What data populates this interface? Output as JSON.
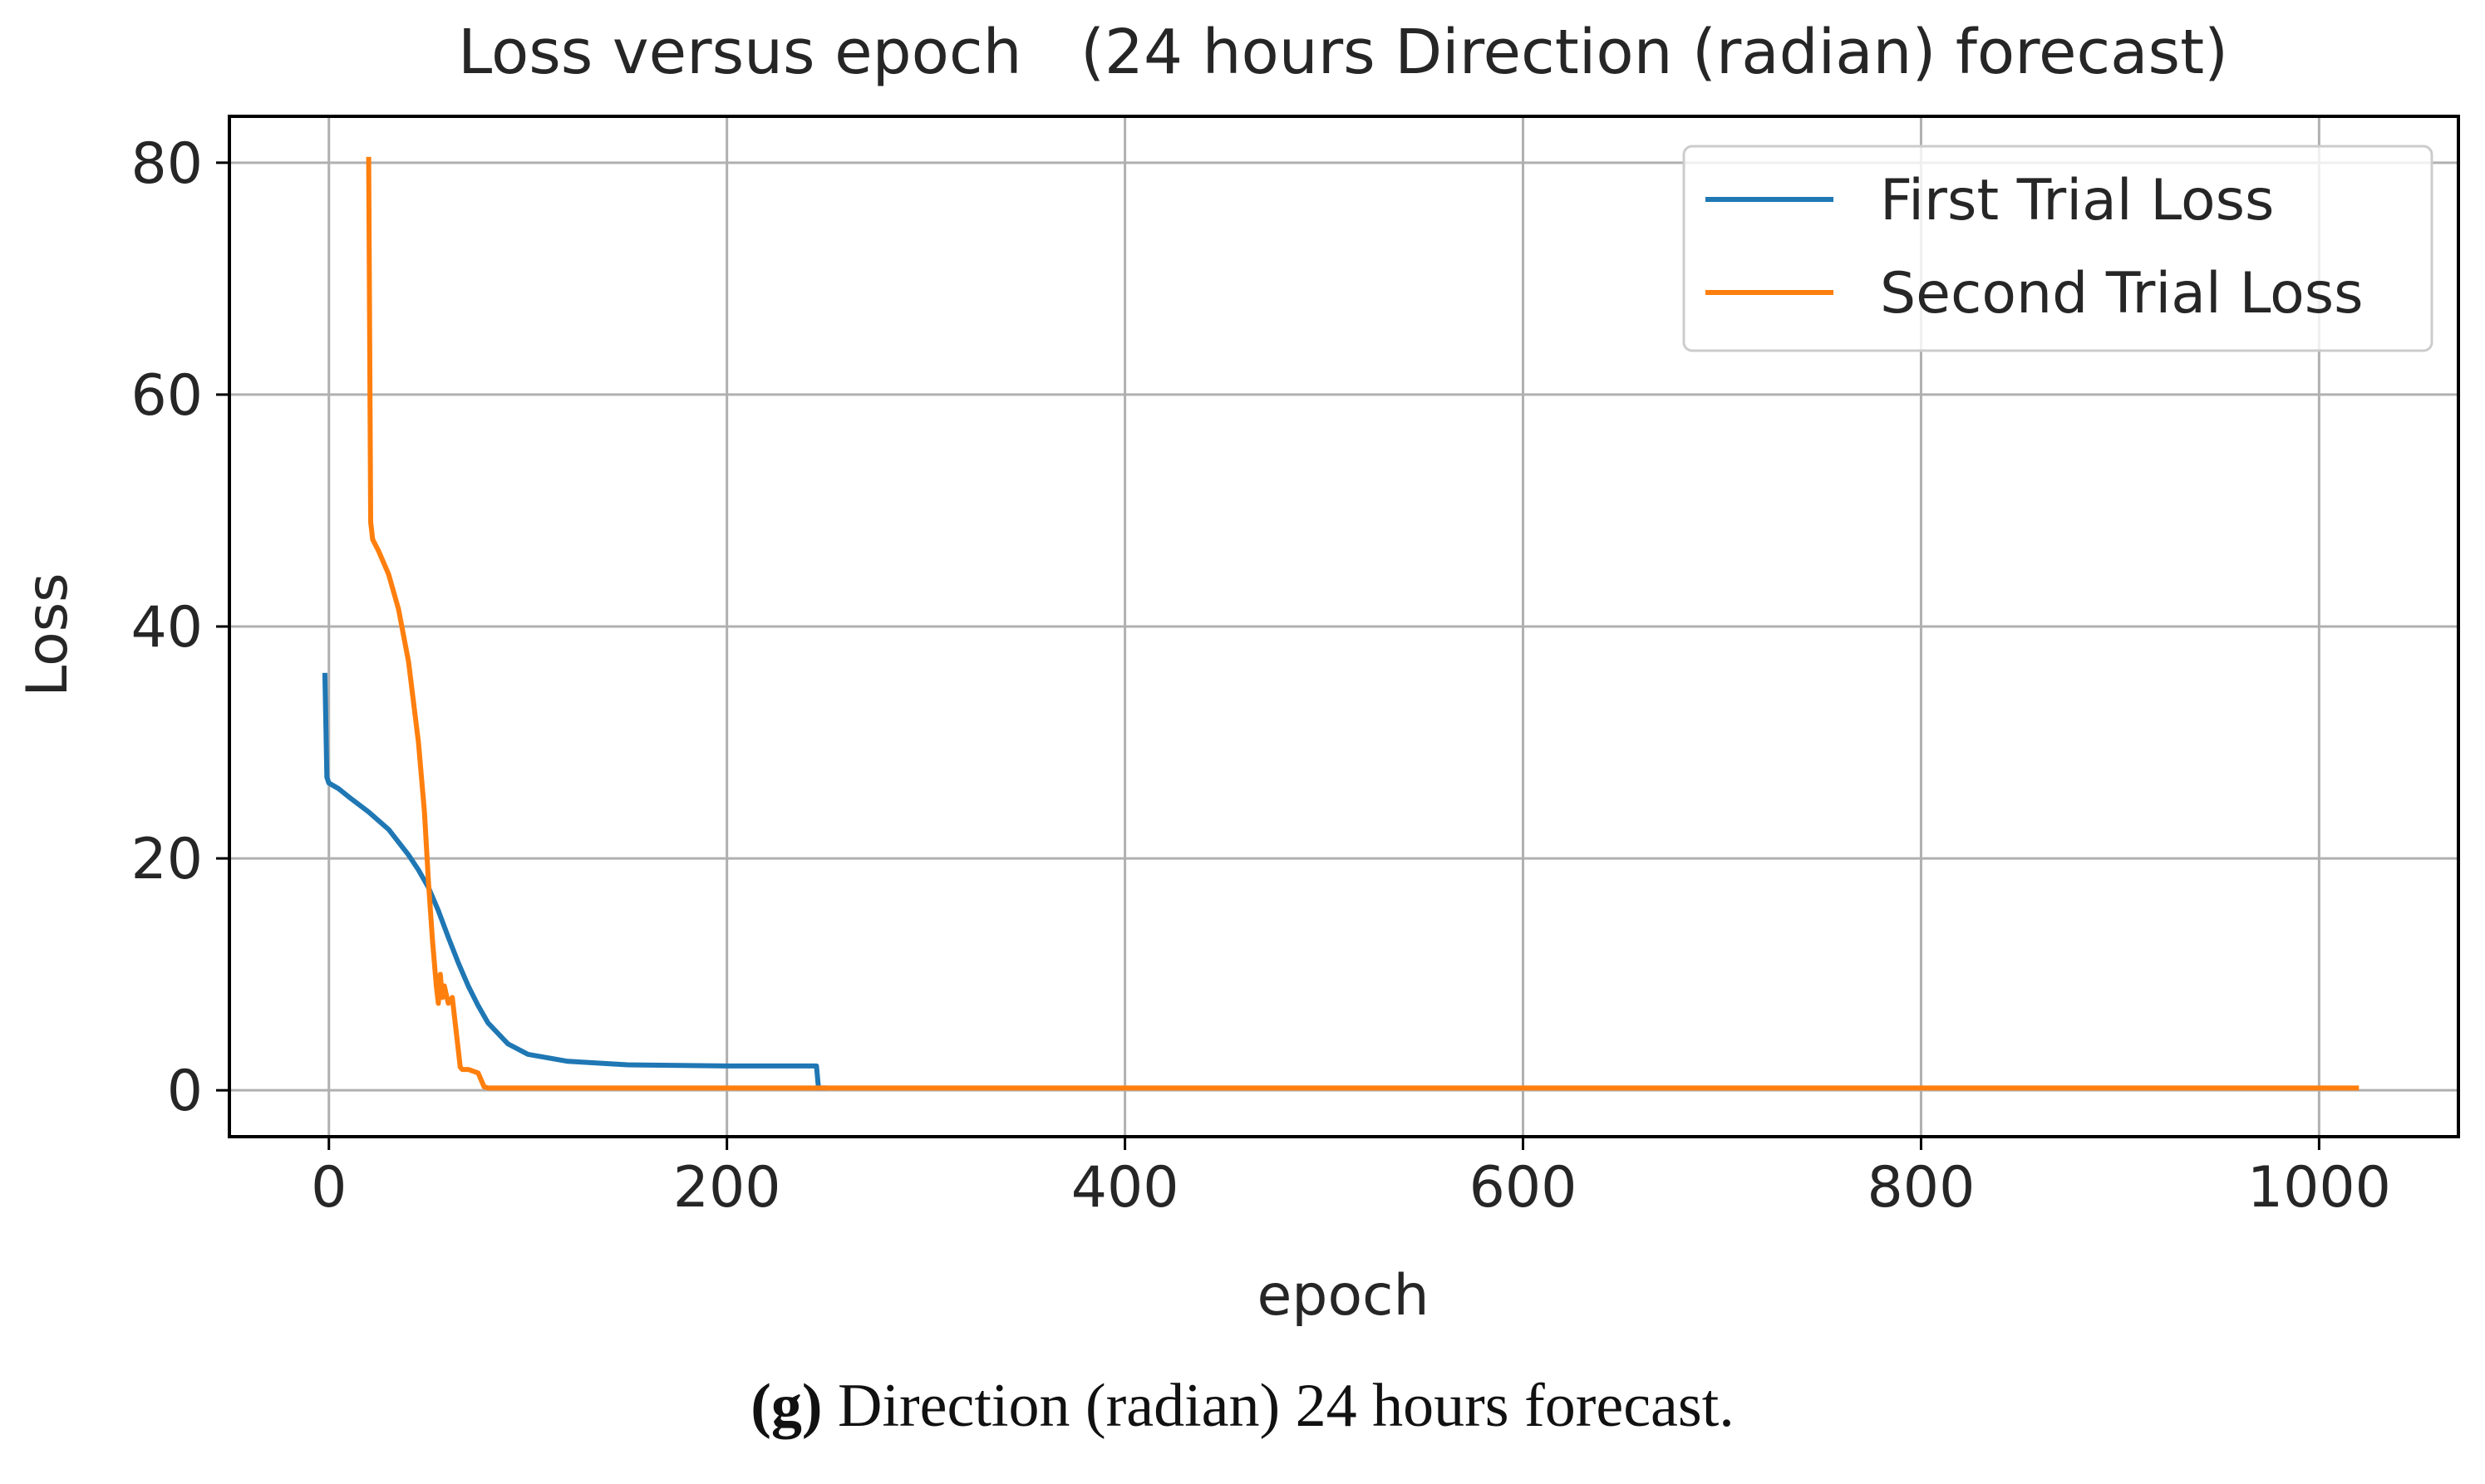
{
  "chart_data": {
    "type": "line",
    "title": "Loss versus epoch   (24 hours Direction (radian) forecast)",
    "xlabel": "epoch",
    "ylabel": "Loss",
    "xlim": [
      -50,
      1070
    ],
    "ylim": [
      -4,
      84
    ],
    "xticks": [
      0,
      200,
      400,
      600,
      800,
      1000
    ],
    "yticks": [
      0,
      20,
      40,
      60,
      80
    ],
    "grid": true,
    "legend_position": "top-right",
    "series": [
      {
        "name": "First Trial Loss",
        "color": "#1f77b4",
        "x": [
          -2,
          -1,
          0,
          5,
          10,
          20,
          30,
          40,
          45,
          50,
          55,
          60,
          65,
          70,
          75,
          80,
          90,
          100,
          120,
          150,
          200,
          245,
          246,
          248,
          250
        ],
        "y": [
          36,
          27,
          26.5,
          26,
          25.3,
          24,
          22.5,
          20.3,
          19,
          17.5,
          15.5,
          13.2,
          11,
          9,
          7.3,
          5.8,
          4,
          3.1,
          2.5,
          2.2,
          2.1,
          2.1,
          0.2,
          0.2,
          0.2
        ]
      },
      {
        "name": "Second Trial Loss",
        "color": "#ff7f0e",
        "x": [
          20,
          21,
          22,
          25,
          30,
          35,
          40,
          45,
          48,
          50,
          52,
          54,
          55,
          56,
          57,
          58,
          60,
          62,
          64,
          66,
          67,
          70,
          75,
          78,
          80,
          100,
          200,
          400,
          600,
          800,
          1020
        ],
        "y": [
          80.5,
          49,
          47.5,
          46.5,
          44.5,
          41.5,
          37,
          30,
          24,
          18,
          13,
          9,
          7.5,
          10,
          8,
          9,
          7.5,
          8,
          5,
          2,
          1.8,
          1.8,
          1.5,
          0.3,
          0.2,
          0.2,
          0.2,
          0.2,
          0.2,
          0.2,
          0.2
        ]
      }
    ]
  },
  "caption": {
    "label": "(g)",
    "text": " Direction (radian) 24 hours forecast."
  }
}
